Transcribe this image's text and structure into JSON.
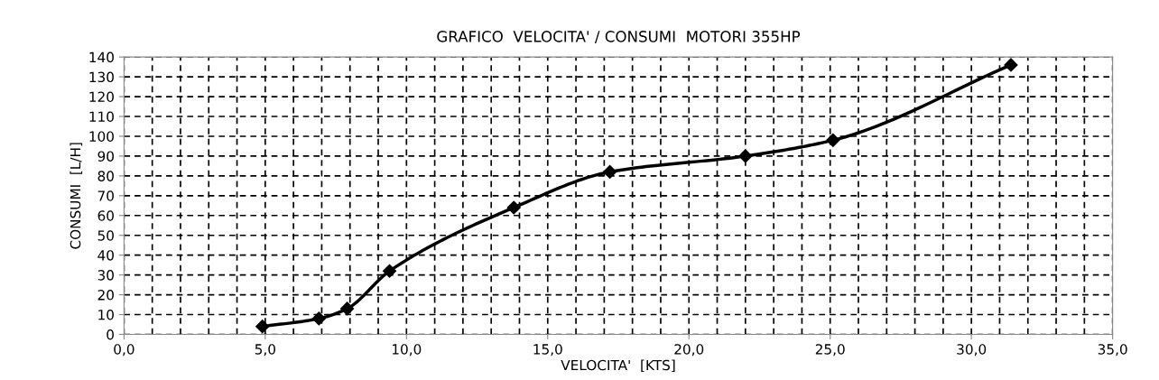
{
  "chart_data": {
    "type": "line",
    "title": "GRAFICO  VELOCITA' / CONSUMI  MOTORI 355HP",
    "xlabel": "VELOCITA'  [KTS]",
    "ylabel": "CONSUMI  [L/H]",
    "x": [
      4.9,
      6.9,
      7.9,
      9.4,
      13.8,
      17.2,
      22.0,
      25.1,
      31.4
    ],
    "series": [
      {
        "color": "#000000",
        "values": [
          4,
          8,
          13,
          32,
          64,
          82,
          90,
          98,
          136
        ]
      }
    ],
    "marker": "diamond",
    "line_style": "solid",
    "grid": true,
    "xlim": [
      0,
      35
    ],
    "ylim": [
      0,
      140
    ],
    "xticks": [
      {
        "value": 0,
        "label": "0,0"
      },
      {
        "value": 1,
        "label": null
      },
      {
        "value": 2,
        "label": null
      },
      {
        "value": 3,
        "label": null
      },
      {
        "value": 4,
        "label": null
      },
      {
        "value": 5,
        "label": "5,0"
      },
      {
        "value": 6,
        "label": null
      },
      {
        "value": 7,
        "label": null
      },
      {
        "value": 8,
        "label": null
      },
      {
        "value": 9,
        "label": null
      },
      {
        "value": 10,
        "label": "10,0"
      },
      {
        "value": 11,
        "label": null
      },
      {
        "value": 12,
        "label": null
      },
      {
        "value": 13,
        "label": null
      },
      {
        "value": 14,
        "label": null
      },
      {
        "value": 15,
        "label": "15,0"
      },
      {
        "value": 16,
        "label": null
      },
      {
        "value": 17,
        "label": null
      },
      {
        "value": 18,
        "label": null
      },
      {
        "value": 19,
        "label": null
      },
      {
        "value": 20,
        "label": "20,0"
      },
      {
        "value": 21,
        "label": null
      },
      {
        "value": 22,
        "label": null
      },
      {
        "value": 23,
        "label": null
      },
      {
        "value": 24,
        "label": null
      },
      {
        "value": 25,
        "label": "25,0"
      },
      {
        "value": 26,
        "label": null
      },
      {
        "value": 27,
        "label": null
      },
      {
        "value": 28,
        "label": null
      },
      {
        "value": 29,
        "label": null
      },
      {
        "value": 30,
        "label": "30,0"
      },
      {
        "value": 31,
        "label": null
      },
      {
        "value": 32,
        "label": null
      },
      {
        "value": 33,
        "label": null
      },
      {
        "value": 34,
        "label": null
      },
      {
        "value": 35,
        "label": "35,0"
      }
    ],
    "yticks": [
      0,
      10,
      20,
      30,
      40,
      50,
      60,
      70,
      80,
      90,
      100,
      110,
      120,
      130,
      140
    ]
  }
}
